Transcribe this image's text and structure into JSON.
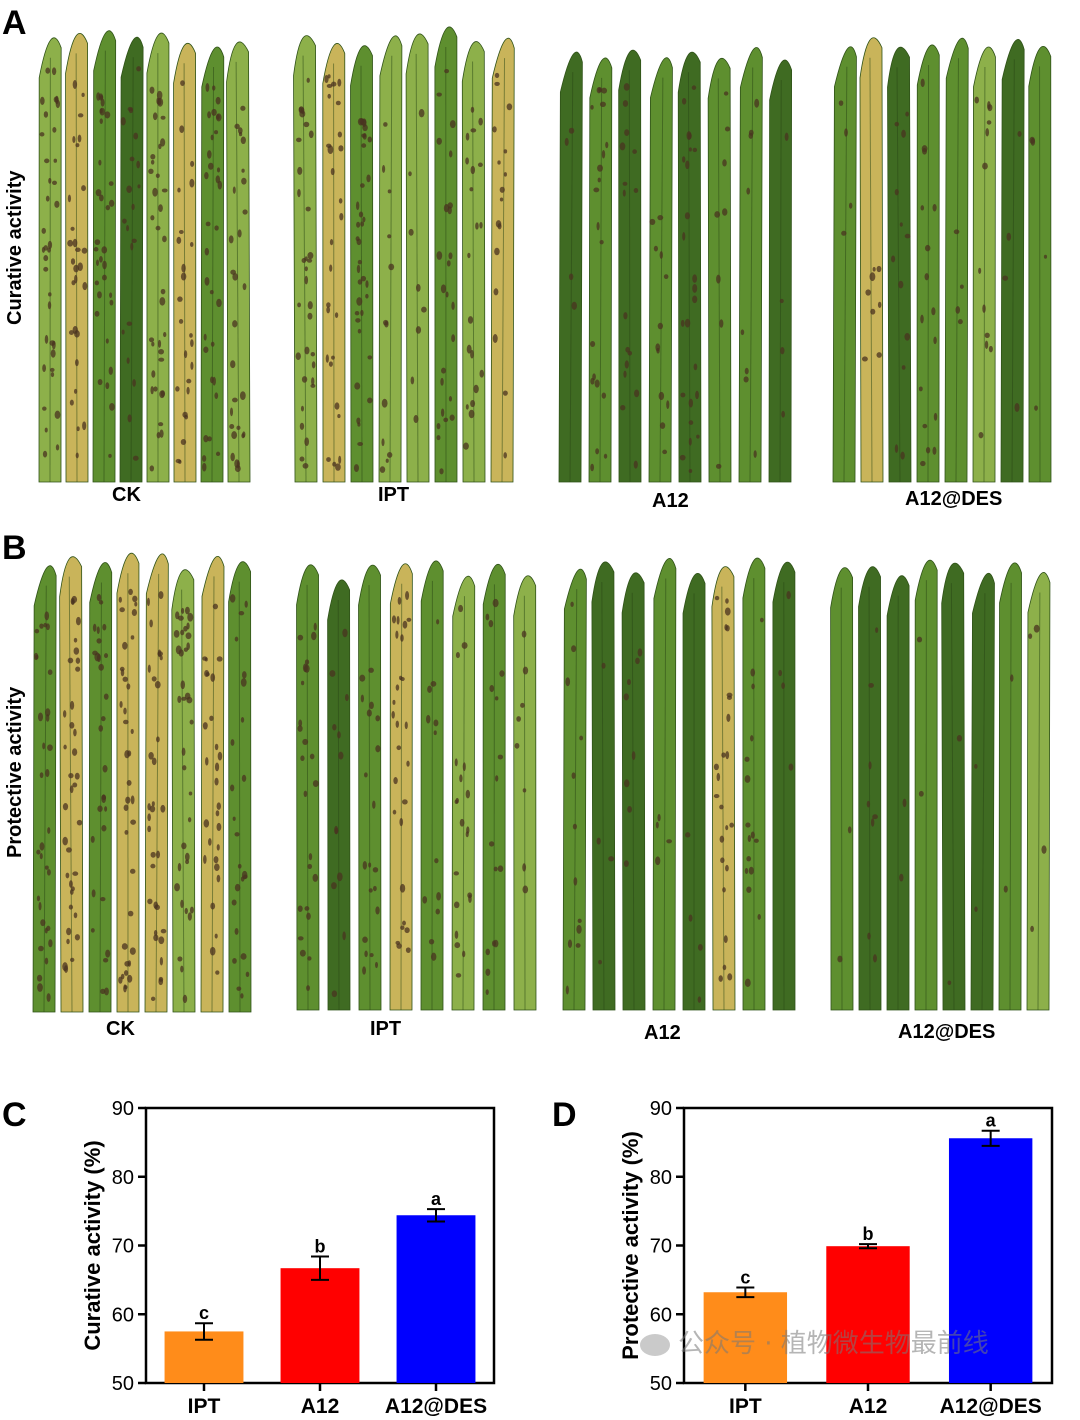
{
  "panels": {
    "A": {
      "letter": "A",
      "row_label": "Curative activity",
      "groups": [
        "CK",
        "IPT",
        "A12",
        "A12@DES"
      ]
    },
    "B": {
      "letter": "B",
      "row_label": "Protective activity",
      "groups": [
        "CK",
        "IPT",
        "A12",
        "A12@DES"
      ]
    },
    "C": {
      "letter": "C"
    },
    "D": {
      "letter": "D"
    }
  },
  "leaf_colors": {
    "green_dark": "#3f6b22",
    "green_mid": "#5e8f2f",
    "green_light": "#8db04a",
    "yellow": "#c9b45a",
    "spot": "#4a3320"
  },
  "chart_data": [
    {
      "type": "bar",
      "categories": [
        "IPT",
        "A12",
        "A12@DES"
      ],
      "values": [
        57.5,
        66.7,
        74.4
      ],
      "errors": [
        1.2,
        1.7,
        0.9
      ],
      "significance": [
        "c",
        "b",
        "a"
      ],
      "colors": [
        "#ff8c1a",
        "#ff0000",
        "#0000ff"
      ],
      "ylabel": "Curative activity (%)",
      "ylim": [
        50,
        90
      ],
      "yticks": [
        50,
        60,
        70,
        80,
        90
      ],
      "grid": false
    },
    {
      "type": "bar",
      "categories": [
        "IPT",
        "A12",
        "A12@DES"
      ],
      "values": [
        63.2,
        69.9,
        85.6
      ],
      "errors": [
        0.7,
        0.3,
        1.1
      ],
      "significance": [
        "c",
        "b",
        "a"
      ],
      "colors": [
        "#ff8c1a",
        "#ff0000",
        "#0000ff"
      ],
      "ylabel": "Protective activity (%)",
      "ylim": [
        50,
        90
      ],
      "yticks": [
        50,
        60,
        70,
        80,
        90
      ],
      "grid": false
    }
  ],
  "watermark": {
    "text": "公众号 · 植物微生物最前线"
  }
}
